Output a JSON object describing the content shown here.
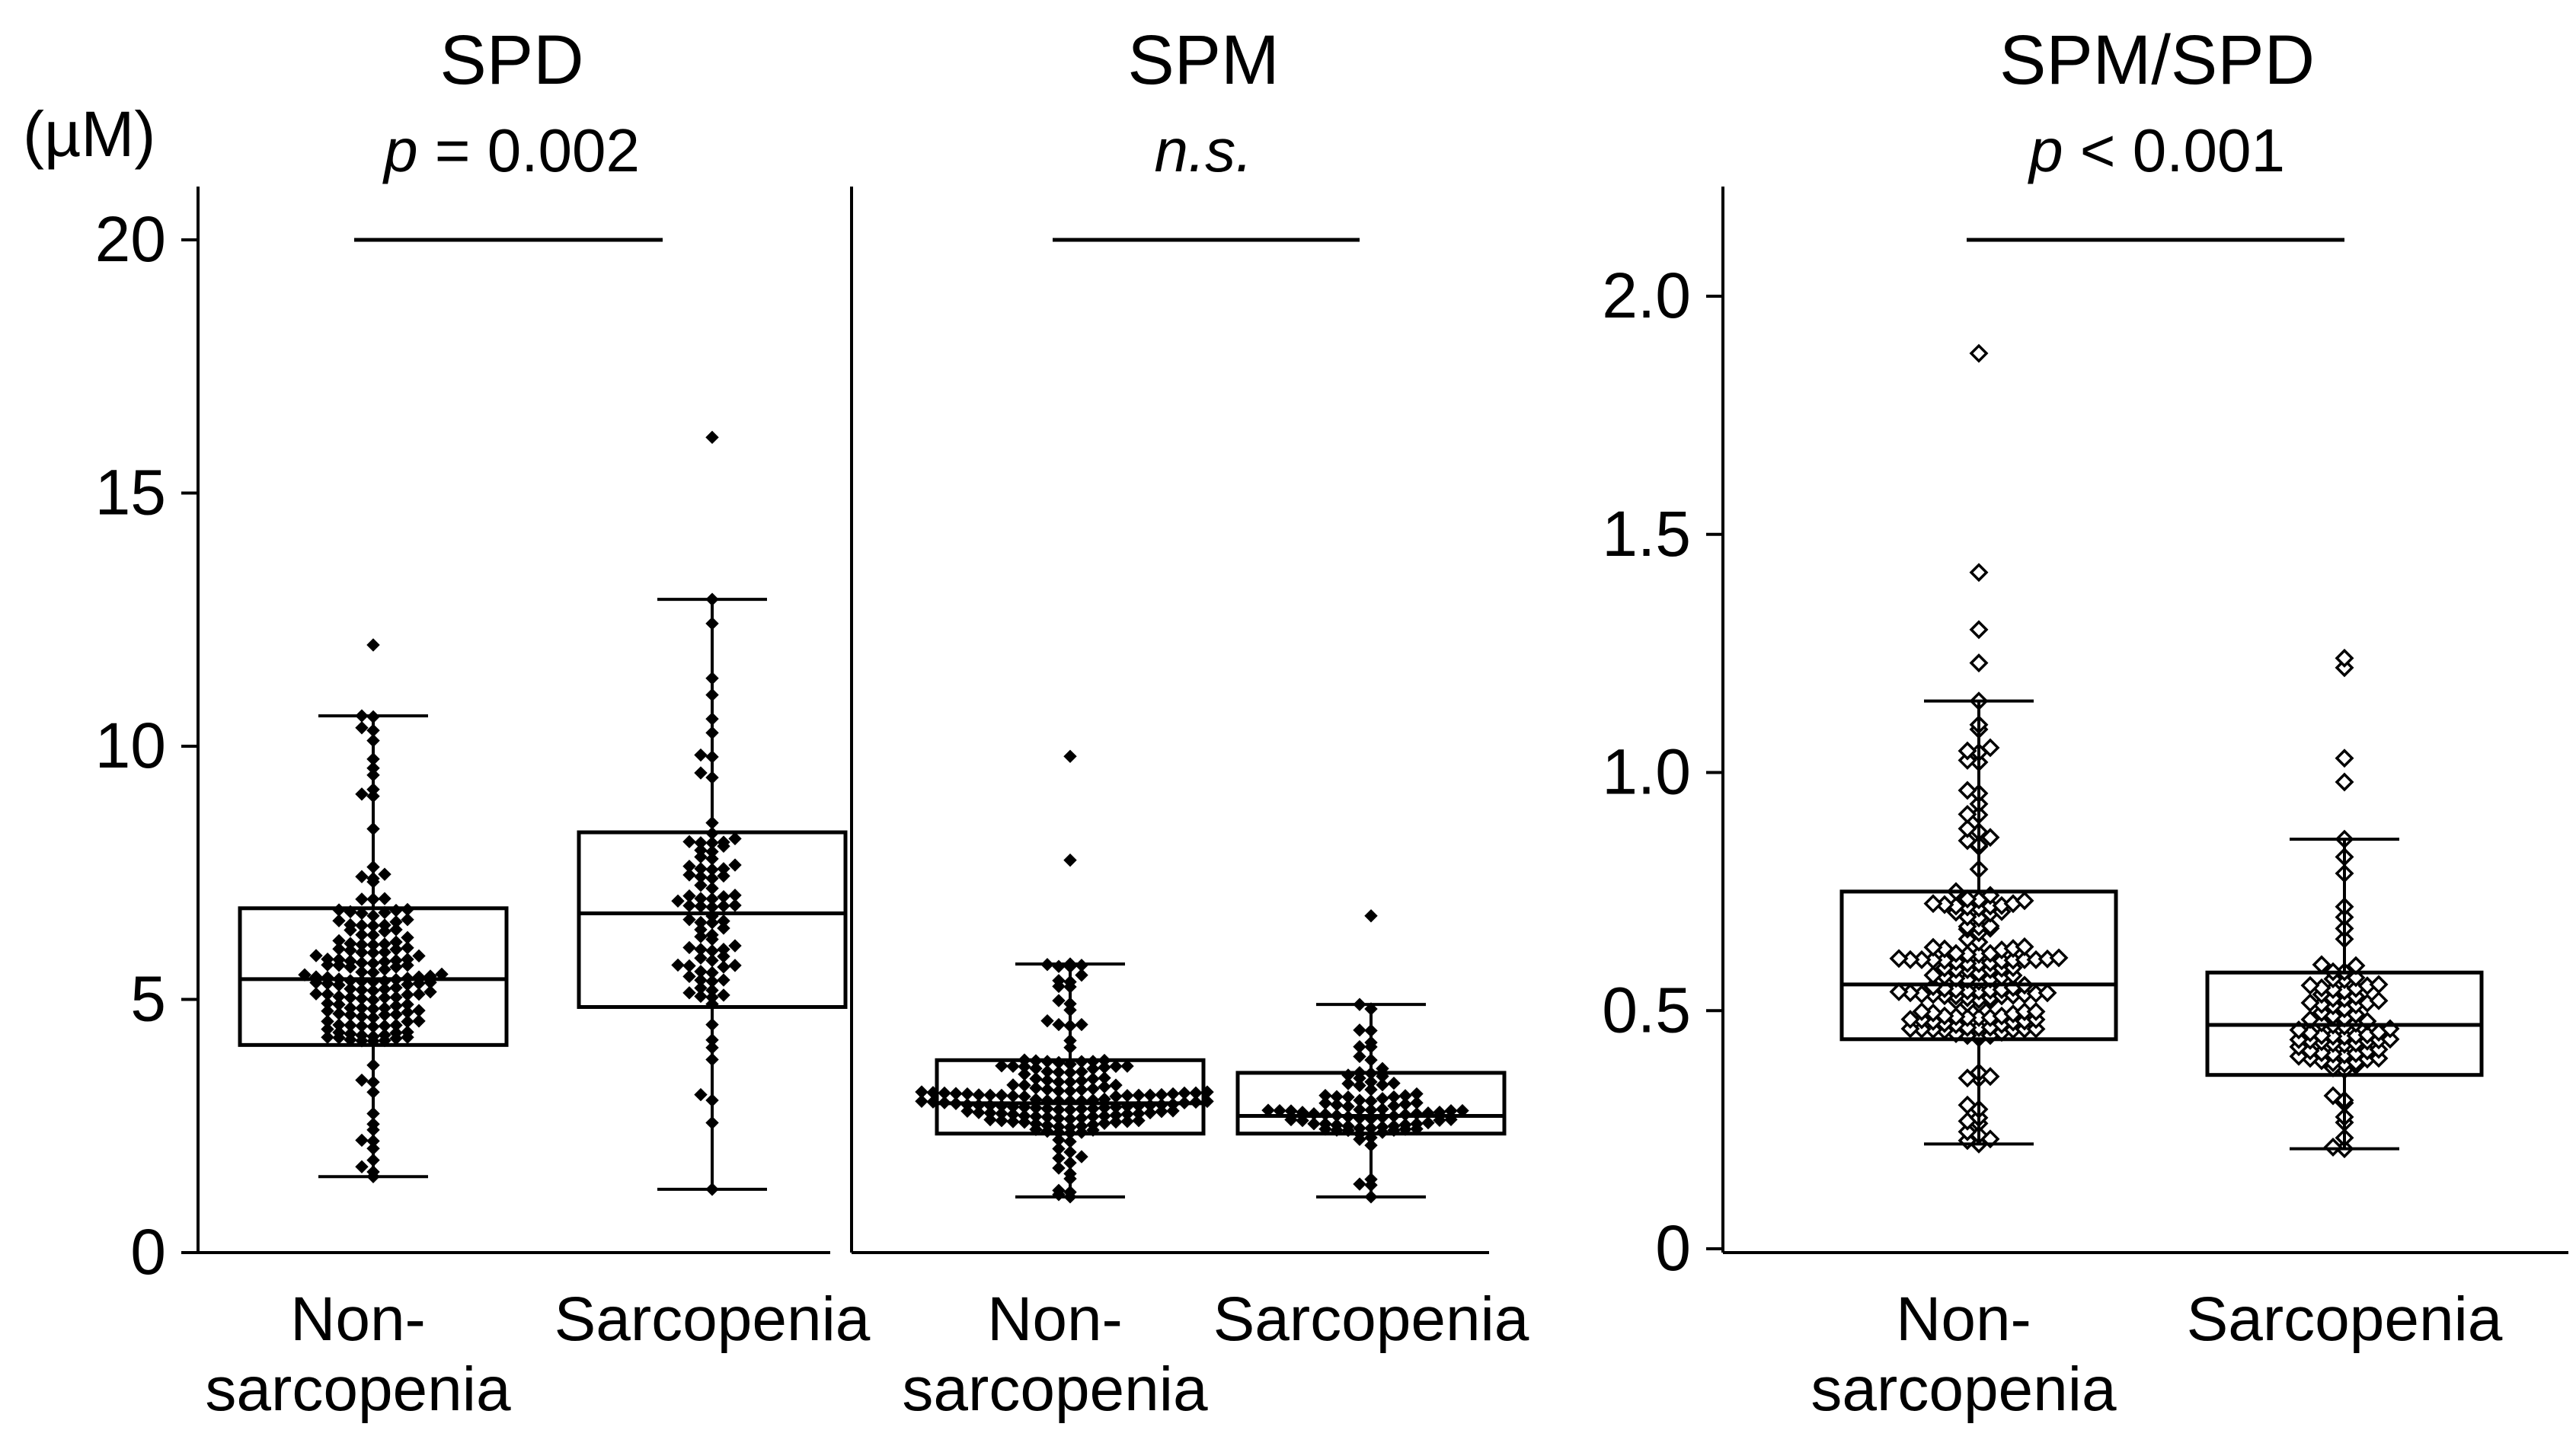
{
  "chart_data": [
    {
      "type": "box",
      "title": "SPD",
      "ylabel": "(µM)",
      "ylim": [
        0,
        20
      ],
      "yticks": [
        0,
        5,
        10,
        15,
        20
      ],
      "ytick_labels": [
        "0",
        "5",
        "10",
        "15",
        "20"
      ],
      "categories": [
        "Non-sarcopenia",
        "Sarcopenia"
      ],
      "category_labels": [
        [
          "Non-",
          "sarcopenia"
        ],
        [
          "Sarcopenia"
        ]
      ],
      "significance": {
        "prefix": "p",
        "text": " = 0.002"
      },
      "boxes": [
        {
          "q1": 4.1,
          "median": 5.4,
          "q3": 6.8,
          "whisker_low": 1.5,
          "whisker_high": 10.6,
          "outliers": [
            12.0
          ]
        },
        {
          "q1": 4.85,
          "median": 6.7,
          "q3": 8.3,
          "whisker_low": 1.25,
          "whisker_high": 12.9,
          "outliers": [
            16.1
          ]
        }
      ],
      "points": [
        {
          "n": 160,
          "seed": 11
        },
        {
          "n": 85,
          "seed": 23
        }
      ],
      "marker": "filled-diamond"
    },
    {
      "type": "box",
      "title": "SPM",
      "ylim": [
        0,
        20
      ],
      "categories": [
        "Non-sarcopenia",
        "Sarcopenia"
      ],
      "category_labels": [
        [
          "Non-",
          "sarcopenia"
        ],
        [
          "Sarcopenia"
        ]
      ],
      "significance": {
        "prefix": "",
        "text": "n.s."
      },
      "boxes": [
        {
          "q1": 2.35,
          "median": 2.95,
          "q3": 3.8,
          "whisker_low": 1.1,
          "whisker_high": 5.7,
          "outliers": [
            7.75,
            9.8
          ]
        },
        {
          "q1": 2.35,
          "median": 2.7,
          "q3": 3.55,
          "whisker_low": 1.1,
          "whisker_high": 4.9,
          "outliers": [
            6.65
          ]
        }
      ],
      "points": [
        {
          "n": 160,
          "seed": 37
        },
        {
          "n": 85,
          "seed": 41
        }
      ],
      "marker": "filled-diamond"
    },
    {
      "type": "box",
      "title": "SPM/SPD",
      "ylim": [
        0,
        2.2
      ],
      "yticks": [
        0,
        0.5,
        1.0,
        1.5,
        2.0
      ],
      "ytick_labels": [
        "0",
        "0.5",
        "1.0",
        "1.5",
        "2.0"
      ],
      "categories": [
        "Non-sarcopenia",
        "Sarcopenia"
      ],
      "category_labels": [
        [
          "Non-",
          "sarcopenia"
        ],
        [
          "Sarcopenia"
        ]
      ],
      "significance": {
        "prefix": "p",
        "text": " < 0.001"
      },
      "boxes": [
        {
          "q1": 0.44,
          "median": 0.555,
          "q3": 0.75,
          "whisker_low": 0.22,
          "whisker_high": 1.15,
          "outliers": [
            1.23,
            1.3,
            1.42,
            1.88
          ]
        },
        {
          "q1": 0.365,
          "median": 0.47,
          "q3": 0.58,
          "whisker_low": 0.21,
          "whisker_high": 0.86,
          "outliers": [
            0.98,
            1.03,
            1.22,
            1.24
          ]
        }
      ],
      "points": [
        {
          "n": 160,
          "seed": 53
        },
        {
          "n": 85,
          "seed": 67
        }
      ],
      "marker": "open-diamond"
    }
  ]
}
